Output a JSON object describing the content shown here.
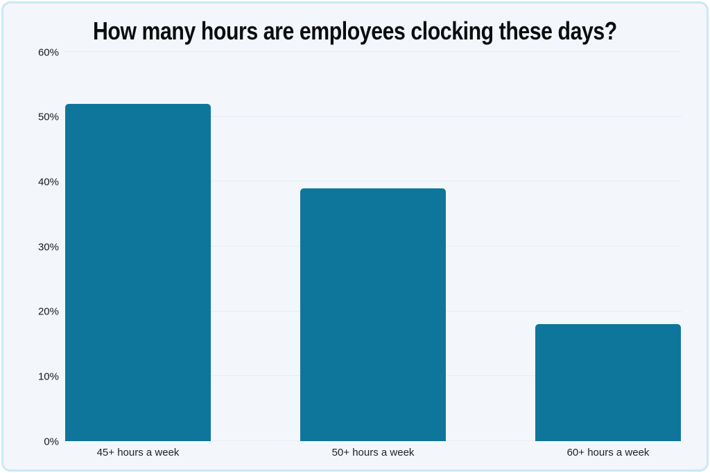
{
  "chart_data": {
    "type": "bar",
    "title": "How many hours are employees clocking these days?",
    "categories": [
      "45+ hours a week",
      "50+ hours a week",
      "60+ hours a week"
    ],
    "values": [
      52,
      39,
      18
    ],
    "value_unit": "%",
    "xlabel": "",
    "ylabel": "",
    "ylim": [
      0,
      60
    ],
    "yticks": [
      0,
      10,
      20,
      30,
      40,
      50,
      60
    ],
    "ytick_labels": [
      "0%",
      "10%",
      "20%",
      "30%",
      "40%",
      "50%",
      "60%"
    ],
    "grid": "horizontal gridlines on",
    "legend_position": "none",
    "colors": {
      "bar": "#0e769b",
      "card_background": "#f3f6fb",
      "card_border": "#cbe7f7",
      "gridline": "#e8ebf1",
      "title_text": "#0b0c0e",
      "tick_text": "#17191d"
    }
  }
}
